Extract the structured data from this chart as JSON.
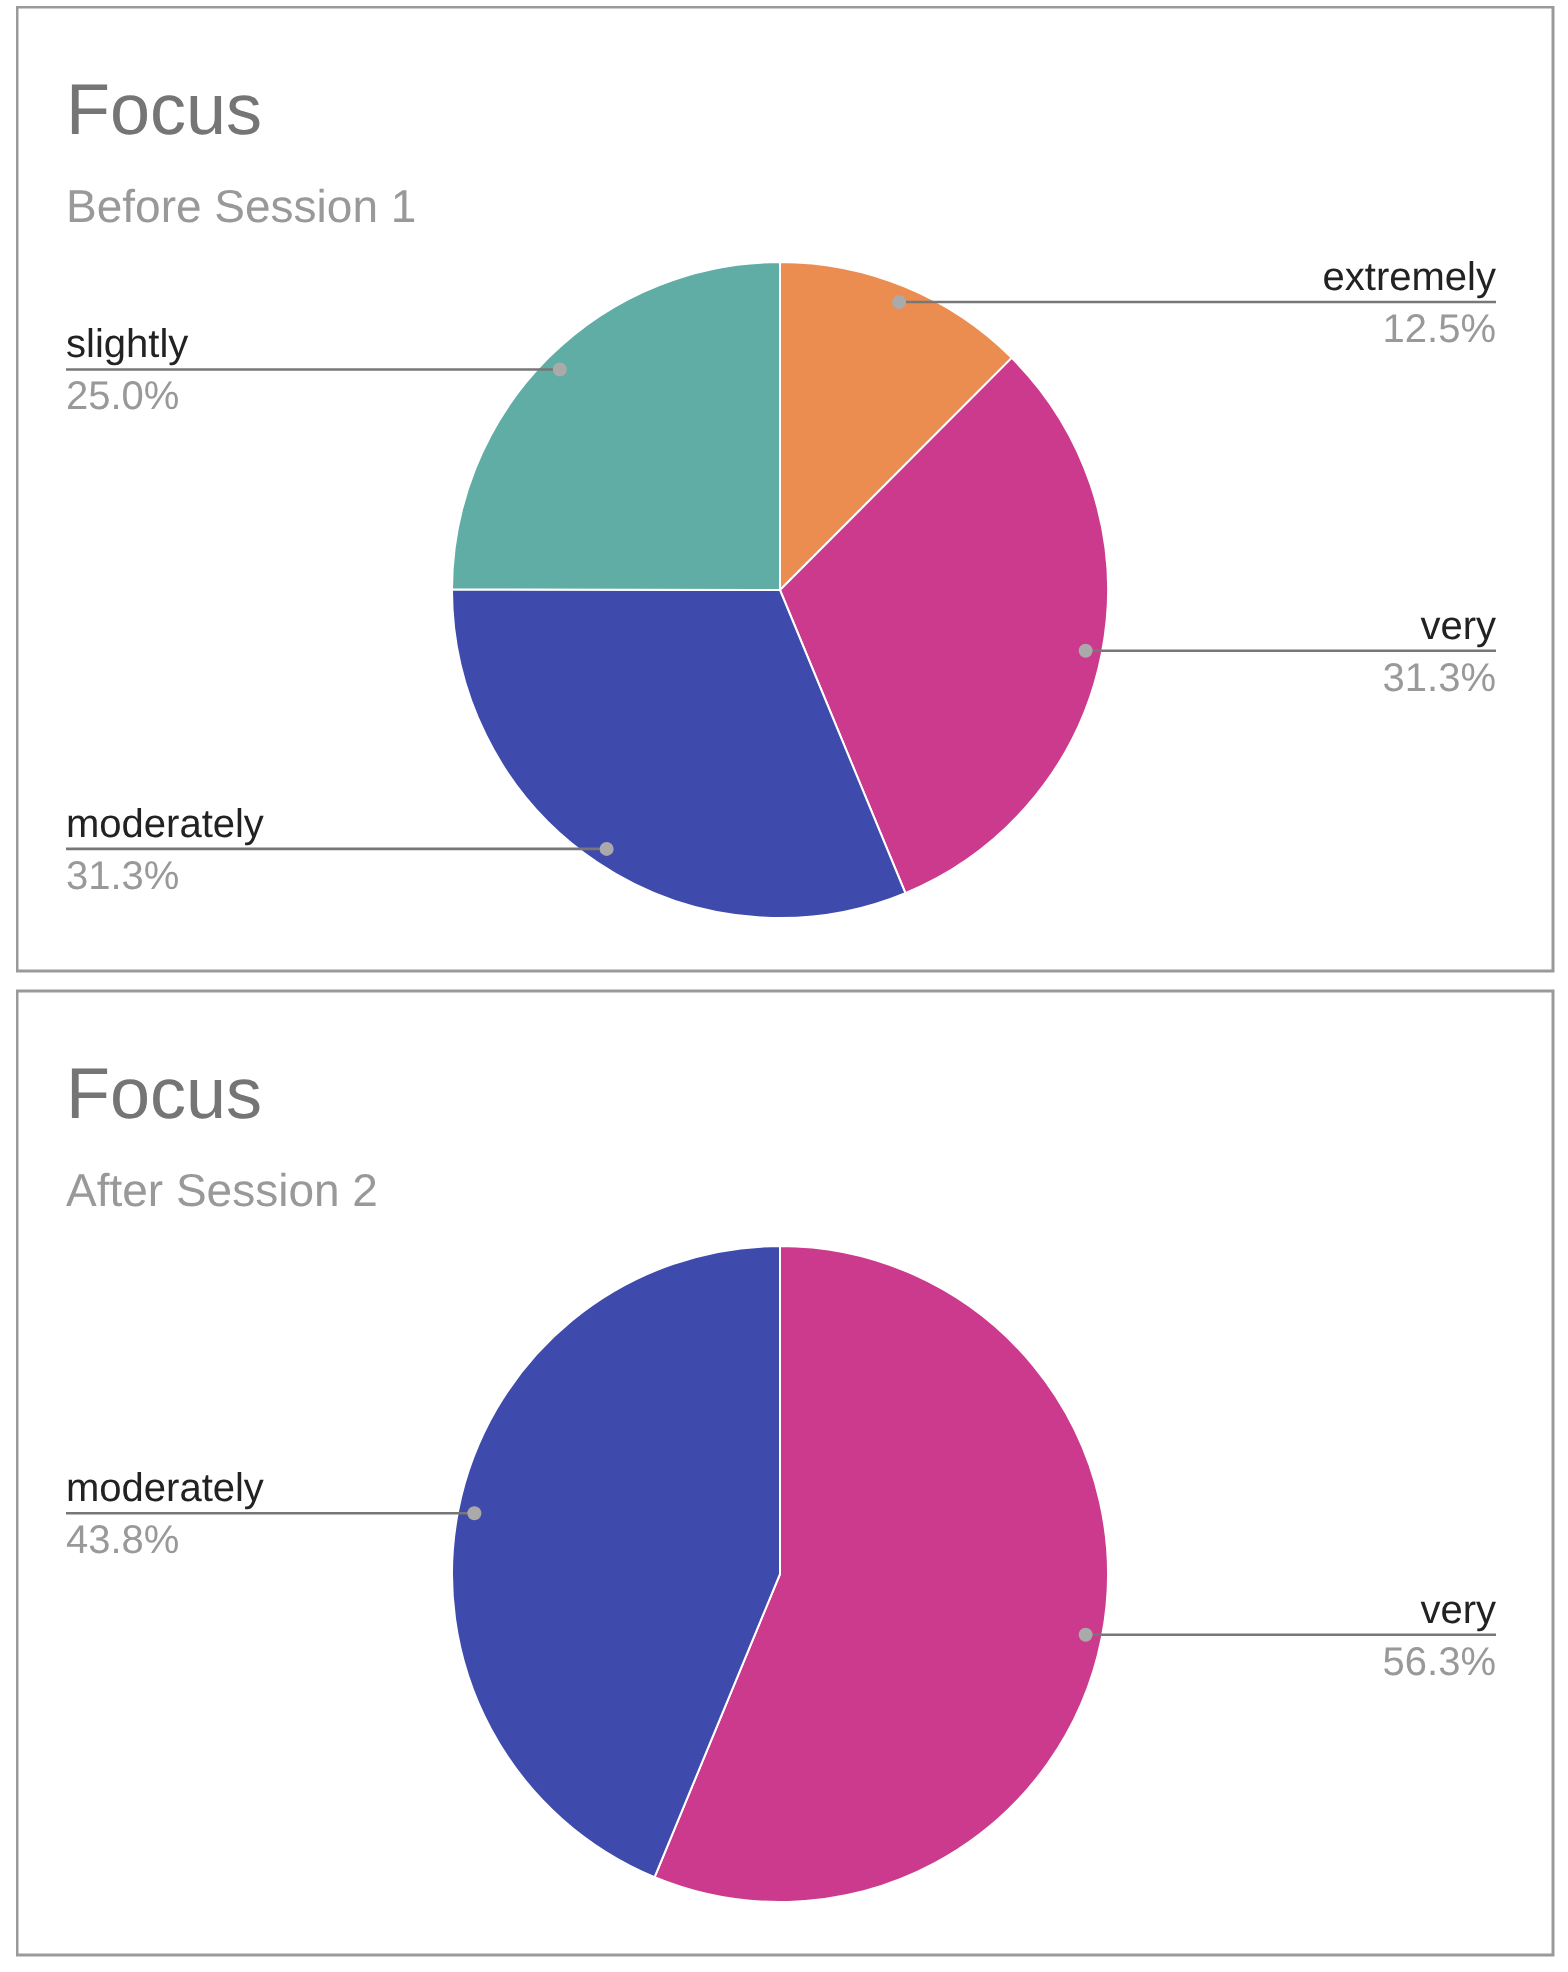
{
  "chart_data": [
    {
      "type": "pie",
      "title": "Focus",
      "subtitle": "Before Session 1",
      "categories": [
        "extremely",
        "very",
        "moderately",
        "slightly"
      ],
      "values": [
        12.5,
        31.3,
        31.3,
        25.0
      ],
      "colors": [
        "#eb8c50",
        "#cb3a8c",
        "#3f4aad",
        "#5fada4"
      ],
      "value_labels": [
        "12.5%",
        "31.3%",
        "31.3%",
        "25.0%"
      ]
    },
    {
      "type": "pie",
      "title": "Focus",
      "subtitle": "After Session 2",
      "categories": [
        "very",
        "moderately"
      ],
      "values": [
        56.3,
        43.8
      ],
      "colors": [
        "#cb3a8c",
        "#3f4aad"
      ],
      "value_labels": [
        "56.3%",
        "43.8%"
      ]
    }
  ]
}
